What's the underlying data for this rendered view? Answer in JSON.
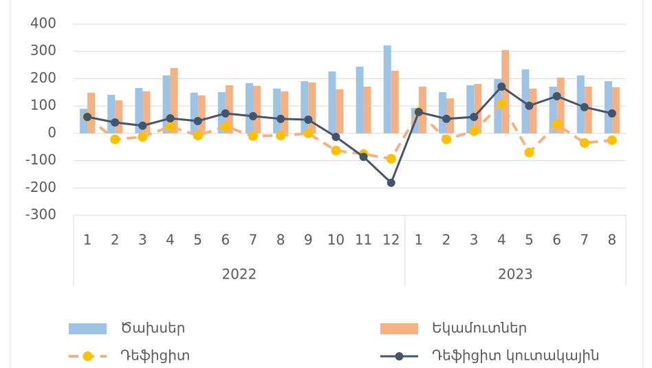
{
  "chart_data": {
    "type": "combo",
    "categories": [
      "1",
      "2",
      "3",
      "4",
      "5",
      "6",
      "7",
      "8",
      "9",
      "10",
      "11",
      "12",
      "1",
      "2",
      "3",
      "4",
      "5",
      "6",
      "7",
      "8"
    ],
    "x_groups": [
      {
        "label": "2022",
        "size": 12
      },
      {
        "label": "2023",
        "size": 8
      }
    ],
    "ylim": [
      -300,
      400
    ],
    "yticks": [
      -300,
      -200,
      -100,
      0,
      100,
      200,
      300,
      400
    ],
    "grid": true,
    "legend": "bottom",
    "series": [
      {
        "name": "Ծախսեր",
        "type": "bar",
        "color": "#9dc3e6",
        "values": [
          90,
          141,
          166,
          212,
          149,
          151,
          184,
          164,
          191,
          227,
          244,
          322,
          93,
          151,
          176,
          199,
          234,
          171,
          212,
          191
        ]
      },
      {
        "name": "Եկամուտներ",
        "type": "bar",
        "color": "#f4b183",
        "values": [
          149,
          121,
          154,
          239,
          139,
          176,
          174,
          154,
          186,
          161,
          171,
          229,
          171,
          128,
          181,
          305,
          164,
          204,
          171,
          169
        ]
      },
      {
        "name": "Դեֆիցիտ",
        "type": "line",
        "style": "dashed",
        "color": "#f4b183",
        "marker_color": "#ffc000",
        "values": [
          60,
          -22,
          -13,
          25,
          -8,
          25,
          -10,
          -8,
          0,
          -63,
          -76,
          -93,
          78,
          -22,
          8,
          108,
          -70,
          33,
          -35,
          -25
        ]
      },
      {
        "name": "Դեֆիցիտ կուտակային",
        "type": "line",
        "style": "solid",
        "color": "#44546a",
        "marker_color": "#44546a",
        "values": [
          60,
          40,
          28,
          55,
          45,
          73,
          63,
          53,
          50,
          -13,
          -86,
          -181,
          78,
          53,
          60,
          171,
          101,
          136,
          96,
          73
        ]
      }
    ]
  }
}
